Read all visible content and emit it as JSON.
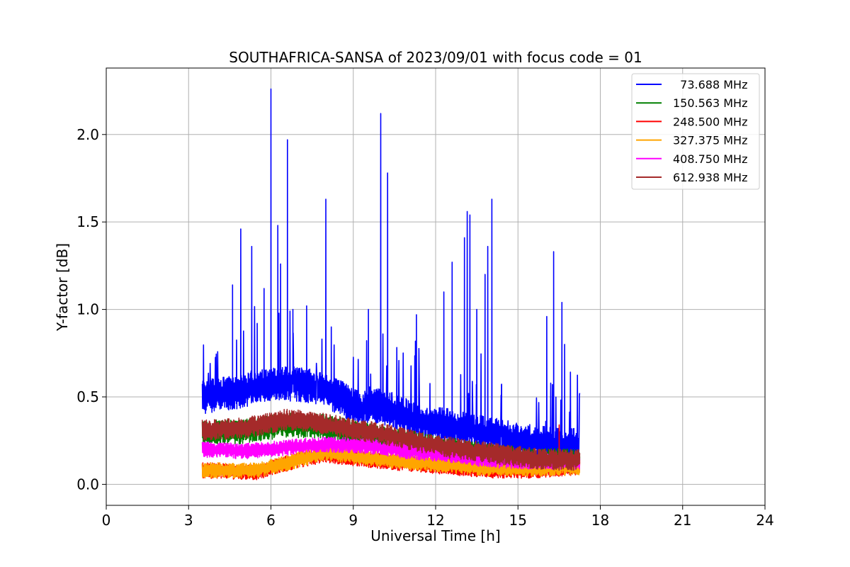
{
  "chart_data": {
    "type": "line",
    "title": "SOUTHAFRICA-SANSA of 2023/09/01 with focus code = 01",
    "xlabel": "Universal Time [h]",
    "ylabel": "Y-factor [dB]",
    "xlim": [
      0,
      24
    ],
    "ylim": [
      -0.12,
      2.38
    ],
    "xticks": [
      0,
      3,
      6,
      9,
      12,
      15,
      18,
      21,
      24
    ],
    "xtick_labels": [
      "0",
      "3",
      "6",
      "9",
      "12",
      "15",
      "18",
      "21",
      "24"
    ],
    "yticks": [
      0.0,
      0.5,
      1.0,
      1.5,
      2.0
    ],
    "ytick_labels": [
      "0.0",
      "0.5",
      "1.0",
      "1.5",
      "2.0"
    ],
    "grid": true,
    "legend_position": "top-right",
    "time_range": [
      3.5,
      17.25
    ],
    "series": [
      {
        "name": "  73.688 MHz",
        "color": "#0000ff",
        "baseline": [
          [
            3.5,
            0.5
          ],
          [
            4.5,
            0.52
          ],
          [
            5.5,
            0.56
          ],
          [
            6.5,
            0.58
          ],
          [
            7.5,
            0.56
          ],
          [
            8.5,
            0.5
          ],
          [
            9.3,
            0.42
          ],
          [
            9.6,
            0.46
          ],
          [
            10.5,
            0.42
          ],
          [
            11.5,
            0.36
          ],
          [
            12.5,
            0.33
          ],
          [
            13.5,
            0.3
          ],
          [
            14.5,
            0.27
          ],
          [
            15.5,
            0.24
          ],
          [
            16.5,
            0.22
          ],
          [
            17.25,
            0.22
          ]
        ],
        "noise_amplitude": 0.1,
        "spikes": [
          [
            4.6,
            1.14
          ],
          [
            4.9,
            1.46
          ],
          [
            5.3,
            1.36
          ],
          [
            5.5,
            0.92
          ],
          [
            5.75,
            1.12
          ],
          [
            6.0,
            2.26
          ],
          [
            6.25,
            1.48
          ],
          [
            6.35,
            1.26
          ],
          [
            6.6,
            1.97
          ],
          [
            6.8,
            1.0
          ],
          [
            7.3,
            1.02
          ],
          [
            8.0,
            1.63
          ],
          [
            8.2,
            0.9
          ],
          [
            9.55,
            1.0
          ],
          [
            10.0,
            2.12
          ],
          [
            10.25,
            1.78
          ],
          [
            11.3,
            0.97
          ],
          [
            12.3,
            1.1
          ],
          [
            12.6,
            1.27
          ],
          [
            13.05,
            1.41
          ],
          [
            13.15,
            1.56
          ],
          [
            13.25,
            1.54
          ],
          [
            13.5,
            1.0
          ],
          [
            13.8,
            1.2
          ],
          [
            13.9,
            1.36
          ],
          [
            14.05,
            1.63
          ],
          [
            14.4,
            0.57
          ],
          [
            16.05,
            0.96
          ],
          [
            16.3,
            1.33
          ],
          [
            16.6,
            1.04
          ],
          [
            16.7,
            0.8
          ]
        ]
      },
      {
        "name": "150.563 MHz",
        "color": "#008000",
        "baseline": [
          [
            3.5,
            0.3
          ],
          [
            5.0,
            0.3
          ],
          [
            6.5,
            0.34
          ],
          [
            8.0,
            0.33
          ],
          [
            9.5,
            0.28
          ],
          [
            11.0,
            0.24
          ],
          [
            12.5,
            0.2
          ],
          [
            14.0,
            0.16
          ],
          [
            15.5,
            0.14
          ],
          [
            17.25,
            0.13
          ]
        ],
        "noise_amplitude": 0.07,
        "spikes": []
      },
      {
        "name": "248.500 MHz",
        "color": "#ff0000",
        "baseline": [
          [
            3.5,
            0.08
          ],
          [
            5.5,
            0.07
          ],
          [
            7.0,
            0.14
          ],
          [
            8.0,
            0.17
          ],
          [
            9.5,
            0.14
          ],
          [
            11.0,
            0.12
          ],
          [
            12.5,
            0.1
          ],
          [
            14.0,
            0.08
          ],
          [
            15.5,
            0.08
          ],
          [
            17.25,
            0.1
          ]
        ],
        "noise_amplitude": 0.045,
        "spikes": [
          [
            16.5,
            0.34
          ]
        ]
      },
      {
        "name": "327.375 MHz",
        "color": "#ffa500",
        "baseline": [
          [
            3.5,
            0.08
          ],
          [
            5.5,
            0.08
          ],
          [
            7.0,
            0.14
          ],
          [
            8.0,
            0.18
          ],
          [
            9.5,
            0.15
          ],
          [
            11.0,
            0.13
          ],
          [
            12.5,
            0.11
          ],
          [
            14.0,
            0.09
          ],
          [
            15.5,
            0.09
          ],
          [
            17.25,
            0.1
          ]
        ],
        "noise_amplitude": 0.045,
        "spikes": []
      },
      {
        "name": "408.750 MHz",
        "color": "#ff00ff",
        "baseline": [
          [
            3.5,
            0.2
          ],
          [
            5.0,
            0.19
          ],
          [
            6.5,
            0.21
          ],
          [
            8.0,
            0.23
          ],
          [
            9.5,
            0.22
          ],
          [
            11.0,
            0.19
          ],
          [
            12.5,
            0.17
          ],
          [
            14.0,
            0.14
          ],
          [
            15.5,
            0.13
          ],
          [
            17.25,
            0.13
          ]
        ],
        "noise_amplitude": 0.045,
        "spikes": []
      },
      {
        "name": "612.938 MHz",
        "color": "#a52a2a",
        "baseline": [
          [
            3.5,
            0.31
          ],
          [
            5.0,
            0.32
          ],
          [
            6.5,
            0.37
          ],
          [
            7.5,
            0.36
          ],
          [
            8.5,
            0.33
          ],
          [
            10.0,
            0.29
          ],
          [
            11.5,
            0.24
          ],
          [
            13.0,
            0.2
          ],
          [
            14.5,
            0.17
          ],
          [
            16.0,
            0.14
          ],
          [
            17.25,
            0.14
          ]
        ],
        "noise_amplitude": 0.06,
        "spikes": []
      }
    ]
  }
}
